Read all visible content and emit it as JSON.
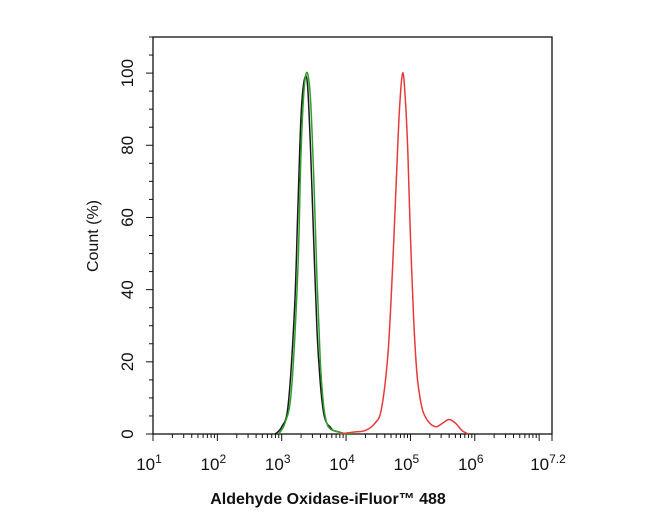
{
  "chart_data": {
    "type": "line",
    "title": "",
    "xlabel": "Aldehyde Oxidase-iFluor™ 488",
    "ylabel": "Count (%)",
    "xscale": "log",
    "xlim": [
      1,
      7.2
    ],
    "ylim": [
      0,
      110
    ],
    "grid": false,
    "legend": "none",
    "x_ticks": [
      {
        "base": "10",
        "exp": "1",
        "value": 1
      },
      {
        "base": "10",
        "exp": "2",
        "value": 2
      },
      {
        "base": "10",
        "exp": "3",
        "value": 3
      },
      {
        "base": "10",
        "exp": "4",
        "value": 4
      },
      {
        "base": "10",
        "exp": "5",
        "value": 5
      },
      {
        "base": "10",
        "exp": "6",
        "value": 6
      },
      {
        "base": "10",
        "exp": "7.2",
        "value": 7.2
      }
    ],
    "y_ticks": [
      "0",
      "20",
      "40",
      "60",
      "80",
      "100"
    ],
    "series": [
      {
        "color": "#1a1a1a",
        "x": [
          2.9,
          3.0,
          3.1,
          3.2,
          3.25,
          3.3,
          3.35,
          3.4,
          3.45,
          3.5,
          3.55,
          3.6,
          3.65,
          3.7,
          3.75,
          3.8,
          3.9,
          4.0,
          4.1
        ],
        "y": [
          0,
          2,
          8,
          35,
          62,
          88,
          98,
          97,
          78,
          52,
          28,
          14,
          6,
          3,
          2,
          1,
          0.5,
          0,
          0
        ]
      },
      {
        "color": "#2e9e2e",
        "x": [
          2.95,
          3.05,
          3.15,
          3.25,
          3.3,
          3.35,
          3.4,
          3.45,
          3.5,
          3.55,
          3.6,
          3.65,
          3.7,
          3.75,
          3.8,
          3.9,
          4.0,
          4.1
        ],
        "y": [
          0,
          3,
          12,
          45,
          78,
          96,
          100,
          92,
          70,
          42,
          20,
          8,
          3,
          1.5,
          1,
          0.5,
          0,
          0
        ]
      },
      {
        "color": "#e8393a",
        "x": [
          3.9,
          4.1,
          4.3,
          4.45,
          4.55,
          4.65,
          4.72,
          4.78,
          4.83,
          4.88,
          4.92,
          4.96,
          5.0,
          5.05,
          5.1,
          5.15,
          5.2,
          5.3,
          5.4,
          5.5,
          5.6,
          5.7,
          5.8,
          5.9
        ],
        "y": [
          0,
          0.5,
          1,
          3,
          7,
          22,
          45,
          70,
          90,
          100,
          93,
          78,
          55,
          32,
          17,
          10,
          6,
          3,
          2,
          3,
          4,
          3,
          1,
          0
        ]
      }
    ]
  }
}
